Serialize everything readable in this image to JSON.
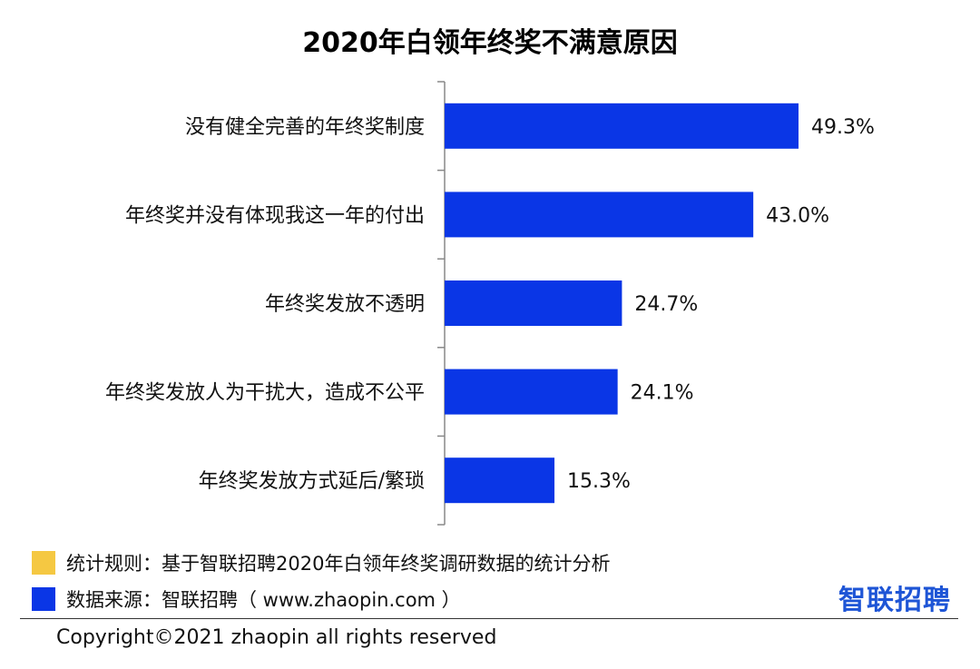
{
  "chart_data": {
    "type": "bar",
    "orientation": "horizontal",
    "title": "2020年白领年终奖不满意原因",
    "categories": [
      "没有健全完善的年终奖制度",
      "年终奖并没有体现我这一年的付出",
      "年终奖发放不透明",
      "年终奖发放人为干扰大，造成不公平",
      "年终奖发放方式延后/繁琐"
    ],
    "values": [
      49.3,
      43.0,
      24.7,
      24.1,
      15.3
    ],
    "value_labels": [
      "49.3%",
      "43.0%",
      "24.7%",
      "24.1%",
      "15.3%"
    ],
    "xlim": [
      0,
      100
    ],
    "bar_color": "#0a36e6",
    "grid": false
  },
  "legend": [
    {
      "text": "统计规则：基于智联招聘2020年白领年终奖调研数据的统计分析",
      "color": "#f5c842"
    },
    {
      "text": "数据来源：智联招聘（ www.zhaopin.com ）",
      "color": "#0a36e6"
    }
  ],
  "brand": "智联招聘",
  "copyright": "Copyright©2021 zhaopin all rights reserved"
}
